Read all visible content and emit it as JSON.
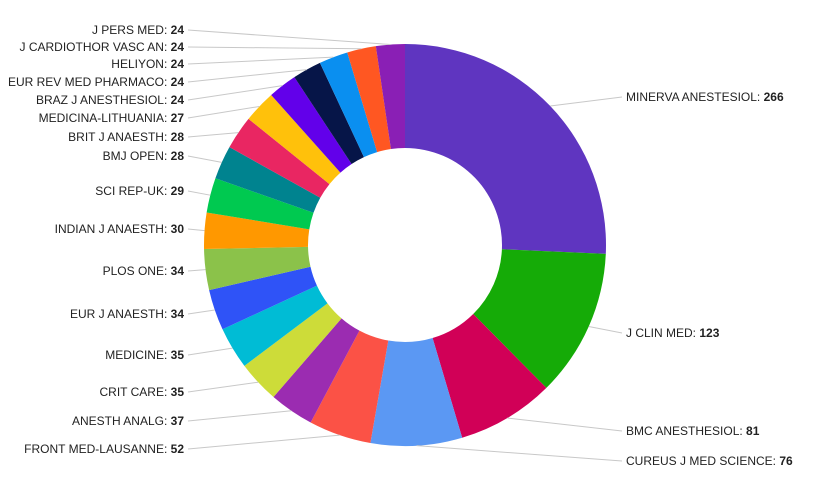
{
  "chart_data": {
    "type": "pie",
    "variant": "donut",
    "title": "",
    "slices": [
      {
        "label": "MINERVA ANESTESIOL",
        "value": 266,
        "color": "#5f35c0"
      },
      {
        "label": "J CLIN MED",
        "value": 123,
        "color": "#15ab07"
      },
      {
        "label": "BMC ANESTHESIOL",
        "value": 81,
        "color": "#d10057"
      },
      {
        "label": "CUREUS J MED SCIENCE",
        "value": 76,
        "color": "#5b98f3"
      },
      {
        "label": "FRONT MED-LAUSANNE",
        "value": 52,
        "color": "#fb5246"
      },
      {
        "label": "ANESTH ANALG",
        "value": 37,
        "color": "#9b2cb1"
      },
      {
        "label": "CRIT CARE",
        "value": 35,
        "color": "#cddc39"
      },
      {
        "label": "MEDICINE",
        "value": 35,
        "color": "#00bcd5"
      },
      {
        "label": "EUR J ANAESTH",
        "value": 34,
        "color": "#2f53f7"
      },
      {
        "label": "PLOS ONE",
        "value": 34,
        "color": "#8bc24a"
      },
      {
        "label": "INDIAN J ANAESTH",
        "value": 30,
        "color": "#ff9800"
      },
      {
        "label": "SCI REP-UK",
        "value": 29,
        "color": "#00c950"
      },
      {
        "label": "BMJ OPEN",
        "value": 28,
        "color": "#00838f"
      },
      {
        "label": "BRIT J ANAESTH",
        "value": 28,
        "color": "#e92662"
      },
      {
        "label": "MEDICINA-LITHUANIA",
        "value": 27,
        "color": "#ffc10b"
      },
      {
        "label": "BRAZ J ANESTHESIOL",
        "value": 24,
        "color": "#6200ea"
      },
      {
        "label": "EUR REV MED PHARMACO",
        "value": 24,
        "color": "#061548"
      },
      {
        "label": "HELIYON",
        "value": 24,
        "color": "#0a8ff0"
      },
      {
        "label": "J CARDIOTHOR VASC AN",
        "value": 24,
        "color": "#ff5722"
      },
      {
        "label": "J PERS MED",
        "value": 24,
        "color": "#8a1fb5"
      }
    ]
  }
}
